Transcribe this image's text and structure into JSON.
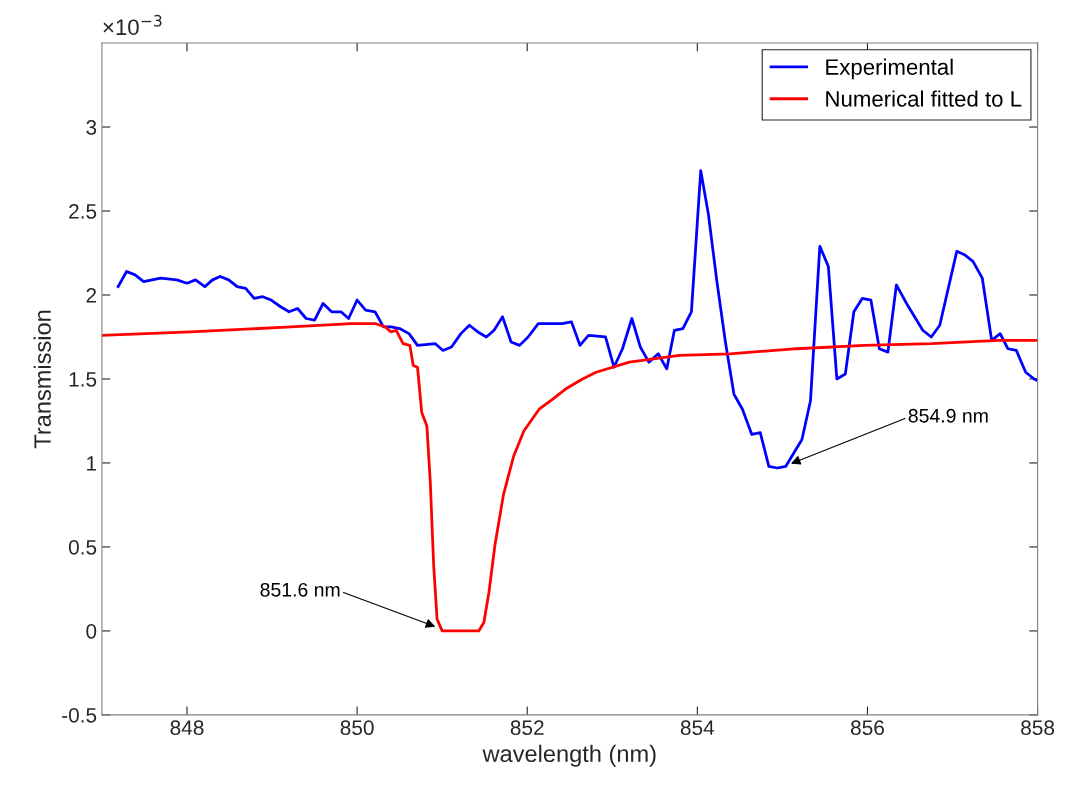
{
  "chart_data": {
    "type": "line",
    "xlabel": "wavelength (nm)",
    "ylabel": "Transmission",
    "xlim": [
      847,
      858
    ],
    "xticks": [
      848,
      850,
      852,
      854,
      856,
      858
    ],
    "ylim": [
      -0.5,
      3.5
    ],
    "yticks": [
      -0.5,
      0,
      0.5,
      1,
      1.5,
      2,
      2.5,
      3
    ],
    "grid": false,
    "legend": "top right",
    "marker": "none",
    "line_style": "solid",
    "annotations": [
      "×10$^{−3}$",
      {
        "text": "851.6 nm",
        "x": 850.95,
        "y": 0.02
      },
      {
        "text": "854.9 nm",
        "x": 855.07,
        "y": 0.99
      }
    ],
    "series": [
      {
        "name": "Experimental",
        "color": "#0000ff",
        "x": [
          847.19,
          847.29,
          847.39,
          847.49,
          847.69,
          847.88,
          848.0,
          848.1,
          848.21,
          848.3,
          848.39,
          848.49,
          848.59,
          848.69,
          848.79,
          848.89,
          848.99,
          849.1,
          849.2,
          849.3,
          849.4,
          849.5,
          849.6,
          849.7,
          849.81,
          849.9,
          850.0,
          850.1,
          850.21,
          850.31,
          850.4,
          850.5,
          850.61,
          850.71,
          850.92,
          851.01,
          851.11,
          851.22,
          851.32,
          851.42,
          851.52,
          851.61,
          851.71,
          851.81,
          851.91,
          852.01,
          852.13,
          852.31,
          852.41,
          852.52,
          852.62,
          852.72,
          852.92,
          853.02,
          853.12,
          853.23,
          853.33,
          853.43,
          853.54,
          853.64,
          853.73,
          853.83,
          853.93,
          854.04,
          854.13,
          854.23,
          854.33,
          854.43,
          854.53,
          854.64,
          854.74,
          854.84,
          854.94,
          855.04,
          855.23,
          855.33,
          855.44,
          855.54,
          855.64,
          855.74,
          855.84,
          855.94,
          856.04,
          856.14,
          856.24,
          856.34,
          856.47,
          856.65,
          856.75,
          856.85,
          857.05,
          857.14,
          857.24,
          857.35,
          857.46,
          857.56,
          857.65,
          857.75,
          857.86,
          857.96,
          858.0
        ],
        "values": [
          2.05,
          2.14,
          2.12,
          2.08,
          2.1,
          2.09,
          2.07,
          2.09,
          2.05,
          2.09,
          2.11,
          2.09,
          2.05,
          2.04,
          1.98,
          1.99,
          1.97,
          1.93,
          1.9,
          1.92,
          1.86,
          1.85,
          1.95,
          1.9,
          1.9,
          1.86,
          1.97,
          1.91,
          1.9,
          1.81,
          1.81,
          1.8,
          1.77,
          1.7,
          1.71,
          1.67,
          1.69,
          1.77,
          1.82,
          1.78,
          1.75,
          1.79,
          1.87,
          1.72,
          1.7,
          1.75,
          1.83,
          1.83,
          1.83,
          1.84,
          1.7,
          1.76,
          1.75,
          1.57,
          1.68,
          1.86,
          1.69,
          1.6,
          1.65,
          1.56,
          1.79,
          1.8,
          1.9,
          2.74,
          2.48,
          2.08,
          1.72,
          1.41,
          1.32,
          1.17,
          1.18,
          0.98,
          0.97,
          0.98,
          1.14,
          1.37,
          2.29,
          2.17,
          1.5,
          1.53,
          1.9,
          1.98,
          1.97,
          1.68,
          1.66,
          2.06,
          1.94,
          1.79,
          1.75,
          1.82,
          2.26,
          2.24,
          2.2,
          2.1,
          1.73,
          1.77,
          1.68,
          1.67,
          1.54,
          1.5,
          1.49
        ]
      },
      {
        "name": "Numerical fitted to L",
        "color": "#ff0000",
        "x": [
          847.0,
          848.04,
          849.22,
          849.93,
          850.21,
          850.33,
          850.4,
          850.46,
          850.54,
          850.62,
          850.66,
          850.71,
          850.76,
          850.82,
          850.86,
          850.9,
          850.94,
          851.0,
          851.43,
          851.49,
          851.55,
          851.62,
          851.72,
          851.84,
          851.96,
          852.14,
          852.3,
          852.45,
          852.65,
          852.81,
          853.2,
          853.79,
          854.38,
          855.17,
          855.96,
          856.75,
          857.54,
          858.0
        ],
        "values": [
          1.76,
          1.78,
          1.81,
          1.83,
          1.83,
          1.81,
          1.78,
          1.79,
          1.71,
          1.7,
          1.58,
          1.57,
          1.3,
          1.22,
          0.89,
          0.39,
          0.07,
          0,
          0,
          0.05,
          0.23,
          0.51,
          0.81,
          1.04,
          1.19,
          1.32,
          1.38,
          1.44,
          1.5,
          1.54,
          1.6,
          1.64,
          1.65,
          1.68,
          1.7,
          1.71,
          1.73,
          1.73
        ]
      }
    ]
  }
}
